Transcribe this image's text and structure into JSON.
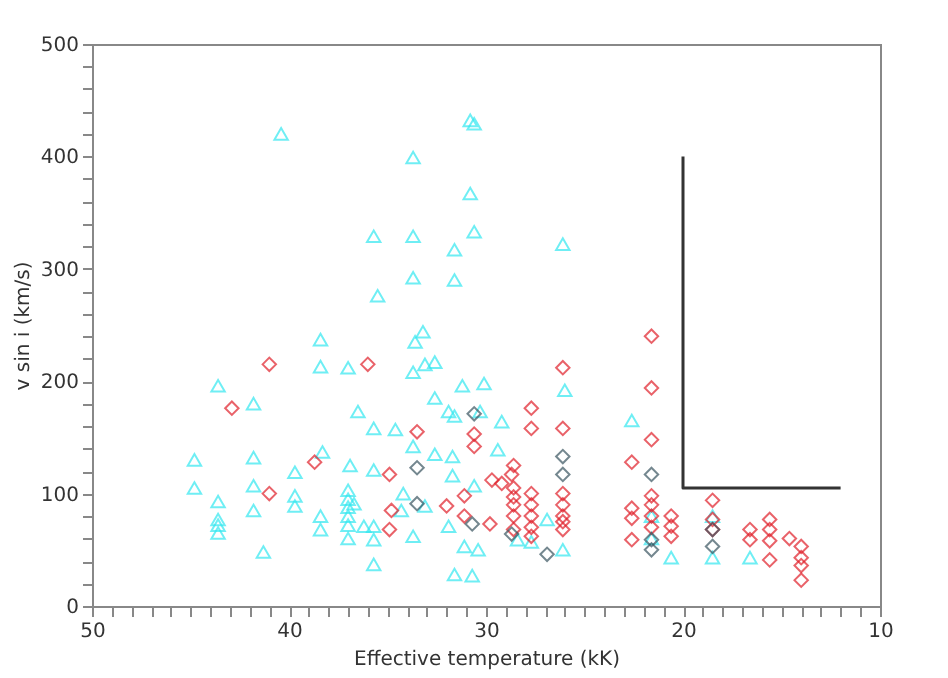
{
  "chart_data": {
    "type": "scatter",
    "xlabel": "Effective temperature (kK)",
    "ylabel": "v sin i (km/s)",
    "xlim": [
      50,
      10
    ],
    "ylim": [
      0,
      500
    ],
    "xticks": [
      50,
      {
        "value": 49,
        "label": null
      },
      {
        "value": 48,
        "label": null
      },
      {
        "value": 47,
        "label": null
      },
      {
        "value": 46,
        "label": null
      },
      {
        "value": 45,
        "label": null
      },
      {
        "value": 44,
        "label": null
      },
      {
        "value": 43,
        "label": null
      },
      {
        "value": 42,
        "label": null
      },
      {
        "value": 41,
        "label": null
      },
      40,
      {
        "value": 39,
        "label": null
      },
      {
        "value": 38,
        "label": null
      },
      {
        "value": 37,
        "label": null
      },
      {
        "value": 36,
        "label": null
      },
      {
        "value": 35,
        "label": null
      },
      {
        "value": 34,
        "label": null
      },
      {
        "value": 33,
        "label": null
      },
      {
        "value": 32,
        "label": null
      },
      {
        "value": 31,
        "label": null
      },
      30,
      {
        "value": 29,
        "label": null
      },
      {
        "value": 28,
        "label": null
      },
      {
        "value": 27,
        "label": null
      },
      {
        "value": 26,
        "label": null
      },
      {
        "value": 25,
        "label": null
      },
      {
        "value": 24,
        "label": null
      },
      {
        "value": 23,
        "label": null
      },
      {
        "value": 22,
        "label": null
      },
      {
        "value": 21,
        "label": null
      },
      20,
      {
        "value": 19,
        "label": null
      },
      {
        "value": 18,
        "label": null
      },
      {
        "value": 17,
        "label": null
      },
      {
        "value": 16,
        "label": null
      },
      {
        "value": 15,
        "label": null
      },
      {
        "value": 14,
        "label": null
      },
      {
        "value": 13,
        "label": null
      },
      {
        "value": 12,
        "label": null
      },
      {
        "value": 11,
        "label": null
      },
      10
    ],
    "yticks": [
      0,
      {
        "value": 20,
        "label": null
      },
      {
        "value": 40,
        "label": null
      },
      {
        "value": 60,
        "label": null
      },
      {
        "value": 80,
        "label": null
      },
      100,
      {
        "value": 120,
        "label": null
      },
      {
        "value": 140,
        "label": null
      },
      {
        "value": 160,
        "label": null
      },
      {
        "value": 180,
        "label": null
      },
      200,
      {
        "value": 220,
        "label": null
      },
      {
        "value": 240,
        "label": null
      },
      {
        "value": 260,
        "label": null
      },
      {
        "value": 280,
        "label": null
      },
      300,
      {
        "value": 320,
        "label": null
      },
      {
        "value": 340,
        "label": null
      },
      {
        "value": 360,
        "label": null
      },
      {
        "value": 380,
        "label": null
      },
      400,
      {
        "value": 420,
        "label": null
      },
      {
        "value": 440,
        "label": null
      },
      {
        "value": 460,
        "label": null
      },
      {
        "value": 480,
        "label": null
      },
      500
    ],
    "grid": false,
    "series": [
      {
        "color": "#33e8f0",
        "marker": "triangle",
        "x": [
          40.4,
          30.8,
          30.6,
          33.7,
          30.8,
          35.7,
          33.7,
          30.6,
          31.6,
          33.7,
          31.6,
          35.5,
          26.1,
          38.4,
          38.4,
          37.0,
          43.6,
          41.8,
          36.5,
          44.8,
          41.8,
          38.3,
          39.7,
          36.9,
          44.8,
          41.8,
          43.6,
          39.7,
          39.7,
          41.8,
          43.6,
          43.6,
          43.6,
          38.4,
          38.4,
          37.0,
          37.0,
          37.0,
          37.0,
          37.0,
          37.0,
          36.2,
          41.3,
          33.6,
          33.2,
          33.7,
          33.1,
          32.6,
          32.6,
          31.2,
          30.1,
          35.7,
          34.6,
          31.9,
          31.6,
          30.3,
          29.2,
          26.0,
          33.7,
          32.6,
          31.7,
          35.7,
          34.2,
          33.1,
          31.7,
          30.6,
          29.4,
          26.9,
          26.1,
          35.7,
          35.7,
          35.7,
          33.7,
          31.9,
          31.6,
          30.7,
          31.1,
          30.4,
          28.4,
          27.7,
          34.3,
          36.7,
          22.6,
          20.6,
          18.5,
          16.6,
          18.5,
          21.6,
          21.6
        ],
        "values": [
          420,
          432,
          429,
          399,
          367,
          329,
          329,
          333,
          317,
          292,
          290,
          276,
          322,
          237,
          213,
          212,
          196,
          180,
          173,
          130,
          132,
          137,
          119,
          125,
          105,
          107,
          93,
          98,
          89,
          85,
          77,
          72,
          65,
          80,
          68,
          103,
          95,
          88,
          80,
          72,
          60,
          71,
          48,
          235,
          244,
          208,
          215,
          217,
          185,
          196,
          198,
          158,
          157,
          173,
          169,
          173,
          164,
          192,
          142,
          135,
          133,
          121,
          100,
          89,
          116,
          107,
          139,
          77,
          50,
          71,
          59,
          37,
          62,
          71,
          28,
          27,
          53,
          50,
          59,
          57,
          85,
          91,
          165,
          43,
          43,
          43,
          80,
          80,
          60
        ]
      },
      {
        "color": "#e0202a",
        "marker": "diamond",
        "x": [
          41.0,
          42.9,
          38.7,
          41.0,
          36.0,
          26.1,
          27.7,
          27.7,
          26.1,
          33.5,
          30.6,
          30.6,
          34.9,
          28.6,
          28.7,
          29.7,
          29.2,
          28.6,
          28.6,
          28.6,
          28.6,
          28.6,
          27.7,
          27.7,
          27.7,
          27.7,
          27.7,
          26.1,
          26.1,
          26.1,
          26.1,
          26.1,
          31.1,
          34.8,
          34.9,
          32.0,
          29.8,
          31.1,
          21.6,
          21.6,
          21.6,
          22.6,
          22.6,
          22.6,
          22.6,
          21.6,
          21.6,
          21.6,
          21.6,
          20.6,
          20.6,
          20.6,
          18.5,
          18.5,
          18.5,
          16.6,
          16.6,
          15.6,
          15.6,
          15.6,
          15.6,
          14.6,
          14.0,
          14.0,
          14.0,
          14.0
        ],
        "values": [
          215,
          176,
          128,
          100,
          215,
          212,
          176,
          158,
          158,
          155,
          153,
          142,
          117,
          125,
          117,
          112,
          109,
          105,
          97,
          90,
          80,
          68,
          100,
          90,
          80,
          70,
          62,
          100,
          90,
          80,
          75,
          68,
          98,
          85,
          68,
          89,
          73,
          80,
          240,
          194,
          148,
          128,
          87,
          78,
          59,
          98,
          90,
          80,
          70,
          80,
          71,
          62,
          94,
          77,
          68,
          68,
          59,
          77,
          68,
          58,
          41,
          60,
          53,
          43,
          36,
          23
        ]
      },
      {
        "color": "#3a5560",
        "marker": "diamond",
        "x": [
          30.6,
          33.5,
          26.1,
          26.1,
          33.5,
          30.7,
          26.9,
          28.7,
          21.6,
          21.6,
          21.6,
          18.5,
          18.5
        ],
        "values": [
          171,
          123,
          133,
          117,
          91,
          73,
          46,
          64,
          117,
          59,
          50,
          68,
          53
        ]
      },
      {
        "type": "line",
        "color": "#333333",
        "marker": "none",
        "line_style": "solid",
        "x": [
          20,
          20,
          12
        ],
        "values": [
          400,
          105,
          105
        ]
      }
    ]
  }
}
